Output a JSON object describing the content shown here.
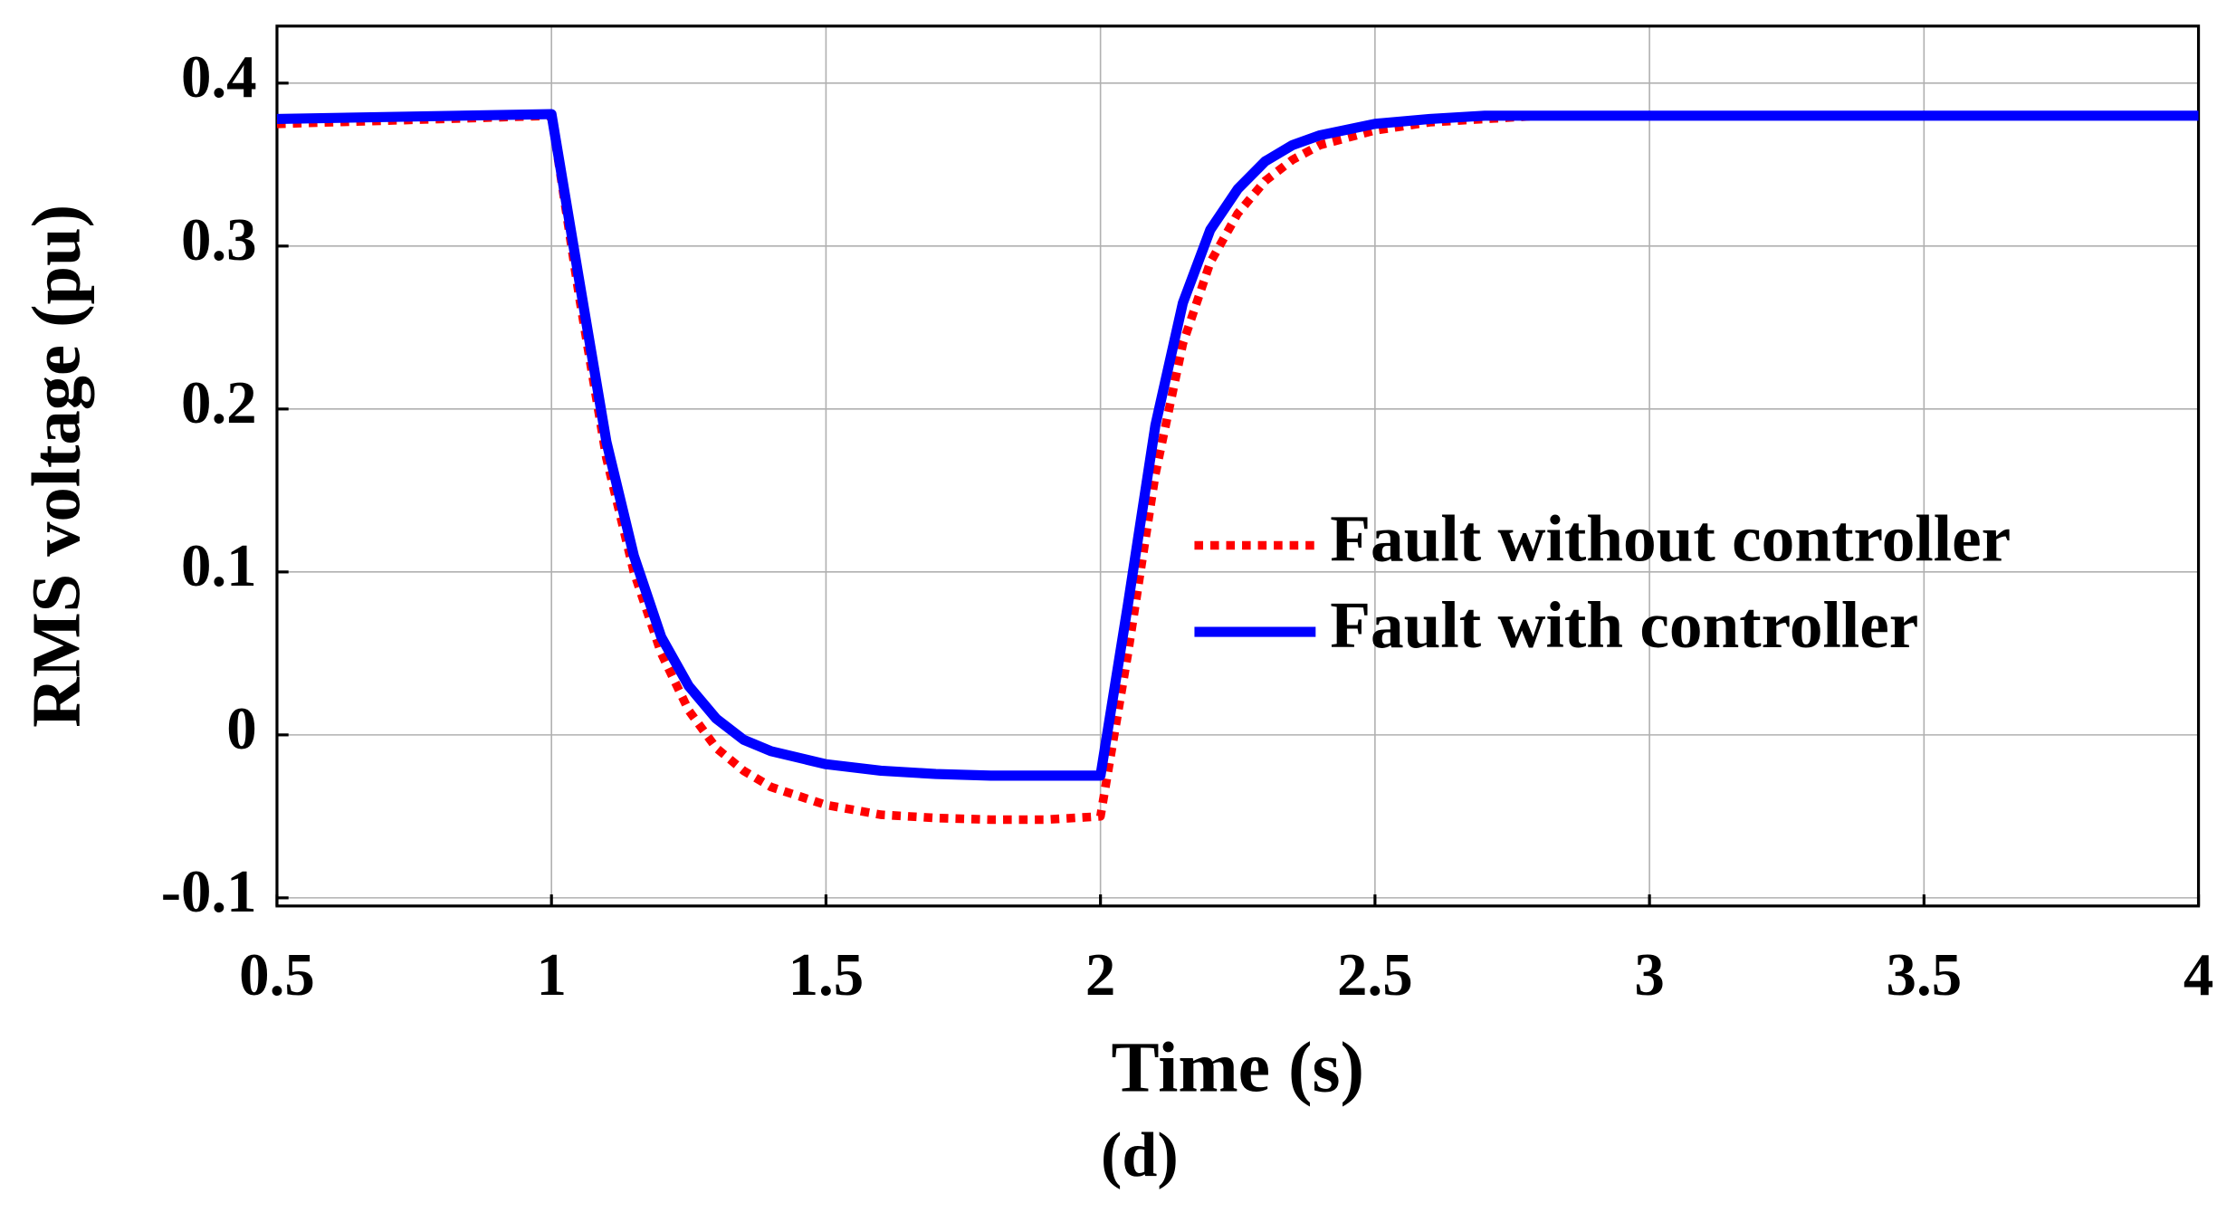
{
  "chart_data": {
    "type": "line",
    "x_label": "Time (s)",
    "y_label": "RMS voltage (pu)",
    "caption": "(d)",
    "x": [
      0.5,
      1.0,
      1.05,
      1.1,
      1.15,
      1.2,
      1.25,
      1.3,
      1.35,
      1.4,
      1.5,
      1.6,
      1.7,
      1.8,
      1.9,
      2.0,
      2.05,
      2.1,
      2.15,
      2.2,
      2.25,
      2.3,
      2.35,
      2.4,
      2.5,
      2.6,
      2.7,
      2.8,
      3.0,
      4.0
    ],
    "series": [
      {
        "name": "Fault without controller",
        "color": "#ff0000",
        "style": "dotted",
        "values": [
          0.375,
          0.38,
          0.27,
          0.17,
          0.1,
          0.05,
          0.015,
          -0.008,
          -0.022,
          -0.032,
          -0.043,
          -0.049,
          -0.051,
          -0.052,
          -0.052,
          -0.05,
          0.05,
          0.16,
          0.24,
          0.29,
          0.32,
          0.34,
          0.353,
          0.362,
          0.371,
          0.376,
          0.378,
          0.38,
          0.38,
          0.38
        ]
      },
      {
        "name": "Fault with controller",
        "color": "#0000ff",
        "style": "solid",
        "values": [
          0.378,
          0.381,
          0.28,
          0.18,
          0.11,
          0.06,
          0.03,
          0.01,
          -0.003,
          -0.01,
          -0.018,
          -0.022,
          -0.024,
          -0.025,
          -0.025,
          -0.025,
          0.08,
          0.19,
          0.265,
          0.31,
          0.335,
          0.352,
          0.362,
          0.368,
          0.375,
          0.378,
          0.38,
          0.38,
          0.38,
          0.38
        ]
      }
    ],
    "xlim": [
      0.5,
      4
    ],
    "xticks": [
      0.5,
      1,
      1.5,
      2,
      2.5,
      3,
      3.5,
      4
    ],
    "ylim": [
      -0.105,
      0.435
    ],
    "yticks": [
      -0.1,
      0,
      0.1,
      0.2,
      0.3,
      0.4
    ],
    "grid": true,
    "legend": "right"
  }
}
